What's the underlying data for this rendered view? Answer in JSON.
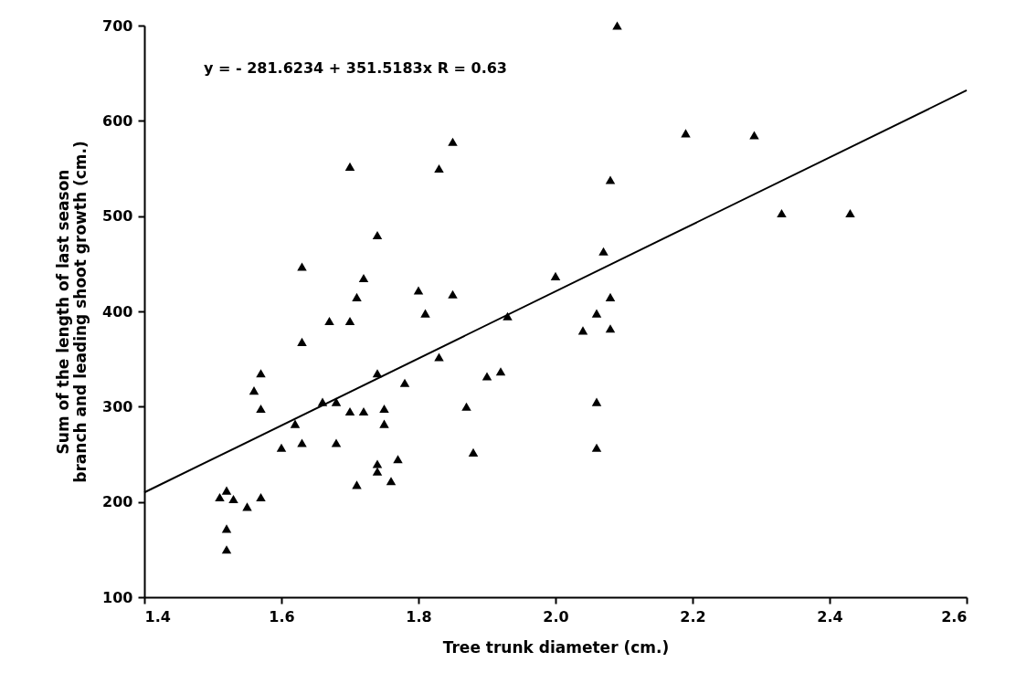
{
  "chart_data": {
    "type": "scatter",
    "xlabel": "Tree trunk diameter (cm.)",
    "ylabel": "Sum of the length of last season\nbranch and leading shoot growth (cm.)",
    "annotations": [
      "y =  - 281.6234 + 351.5183x   R = 0.63"
    ],
    "xlim": [
      1.4,
      2.6
    ],
    "xticks": [
      1.4,
      1.6,
      1.8,
      {
        "value": 2.0,
        "label": "2.0"
      },
      2.2,
      2.4,
      2.6
    ],
    "ylim": [
      100,
      700
    ],
    "yticks": [
      100,
      200,
      300,
      400,
      500,
      600,
      700
    ],
    "grid": false,
    "marker": "triangle",
    "series": [
      {
        "color": "#000000",
        "x": [
          1.51,
          1.52,
          1.53,
          1.52,
          1.52,
          1.55,
          1.57,
          1.56,
          1.57,
          1.57,
          1.6,
          1.62,
          1.63,
          1.63,
          1.63,
          1.66,
          1.67,
          1.68,
          1.68,
          1.7,
          1.7,
          1.7,
          1.71,
          1.71,
          1.72,
          1.72,
          1.74,
          1.74,
          1.74,
          1.74,
          1.75,
          1.75,
          1.76,
          1.77,
          1.78,
          1.8,
          1.81,
          1.83,
          1.83,
          1.85,
          1.85,
          1.87,
          1.88,
          1.9,
          1.92,
          1.93,
          2.0,
          2.04,
          2.06,
          2.06,
          2.06,
          2.07,
          2.08,
          2.08,
          2.08,
          2.09,
          2.19,
          2.29,
          2.33,
          2.43
        ],
        "values": [
          205,
          212,
          203,
          172,
          150,
          195,
          205,
          317,
          335,
          298,
          257,
          282,
          262,
          368,
          447,
          305,
          390,
          305,
          262,
          552,
          390,
          295,
          415,
          218,
          435,
          295,
          480,
          335,
          240,
          232,
          298,
          282,
          222,
          245,
          325,
          422,
          398,
          550,
          352,
          578,
          418,
          300,
          252,
          332,
          337,
          395,
          437,
          380,
          398,
          305,
          257,
          463,
          538,
          415,
          382,
          700,
          587,
          585,
          503,
          503
        ]
      },
      {
        "type": "line",
        "color": "#000000",
        "marker": "none",
        "line_style": "solid",
        "x": [
          1.4,
          2.6
        ],
        "values": [
          210,
          632
        ]
      }
    ]
  }
}
